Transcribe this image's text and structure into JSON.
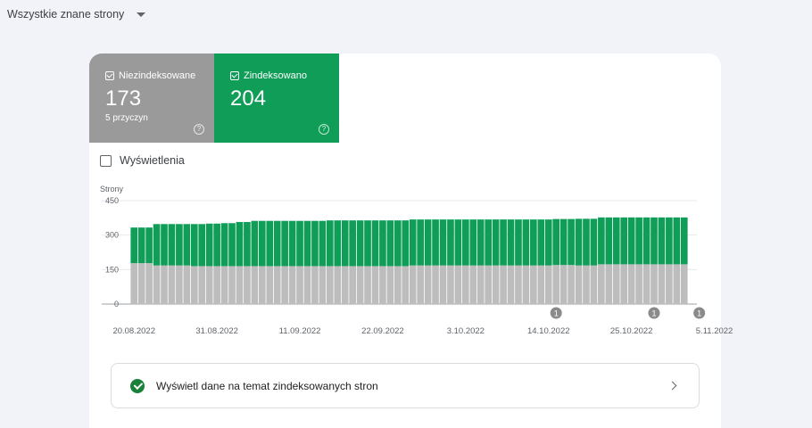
{
  "filter": {
    "label": "Wszystkie znane strony"
  },
  "tiles": {
    "not_indexed": {
      "label": "Niezindeksowane",
      "value": "173",
      "sub": "5 przyczyn",
      "color": "#9a9a9a"
    },
    "indexed": {
      "label": "Zindeksowano",
      "value": "204",
      "color": "#0f9d58"
    }
  },
  "impressions_checkbox": {
    "label": "Wyświetlenia",
    "checked": false
  },
  "cta": {
    "label": "Wyświetl dane na temat zindeksowanych stron"
  },
  "chart_data": {
    "type": "bar",
    "stacked": true,
    "ylabel": "Strony",
    "yticks": [
      0,
      150,
      300,
      450
    ],
    "ylim": [
      0,
      450
    ],
    "grid": true,
    "xtick_labels": [
      "20.08.2022",
      "31.08.2022",
      "11.09.2022",
      "22.09.2022",
      "3.10.2022",
      "14.10.2022",
      "25.10.2022",
      "5.11.2022"
    ],
    "first_date": "20.08.2022",
    "series": [
      {
        "name": "Niezindeksowane",
        "color": "#bdbdbd",
        "values": [
          178,
          178,
          178,
          168,
          168,
          168,
          168,
          168,
          165,
          165,
          165,
          165,
          165,
          165,
          165,
          165,
          165,
          165,
          165,
          165,
          165,
          165,
          165,
          165,
          165,
          165,
          165,
          165,
          165,
          165,
          165,
          165,
          165,
          165,
          165,
          165,
          165,
          168,
          168,
          168,
          168,
          168,
          168,
          168,
          168,
          168,
          168,
          168,
          168,
          168,
          168,
          168,
          168,
          168,
          168,
          168,
          170,
          170,
          170,
          168,
          168,
          168,
          173,
          173,
          173,
          173,
          173,
          173,
          173,
          173,
          173,
          173,
          173,
          173
        ]
      },
      {
        "name": "Zindeksowano",
        "color": "#0f9d58",
        "values": [
          155,
          155,
          155,
          180,
          180,
          180,
          180,
          180,
          183,
          183,
          185,
          185,
          187,
          187,
          192,
          192,
          197,
          197,
          197,
          197,
          197,
          197,
          197,
          197,
          197,
          197,
          199,
          199,
          199,
          199,
          199,
          199,
          199,
          199,
          199,
          199,
          199,
          200,
          200,
          200,
          200,
          200,
          200,
          200,
          200,
          200,
          200,
          200,
          200,
          200,
          200,
          200,
          200,
          200,
          200,
          200,
          200,
          200,
          200,
          203,
          203,
          203,
          204,
          204,
          204,
          204,
          204,
          204,
          204,
          204,
          204,
          204,
          204,
          204
        ]
      }
    ],
    "annotations": [
      {
        "date": "15.10.2022",
        "label": "1"
      },
      {
        "date": "28.10.2022",
        "label": "1"
      },
      {
        "date": "3.11.2022",
        "label": "1"
      }
    ]
  }
}
